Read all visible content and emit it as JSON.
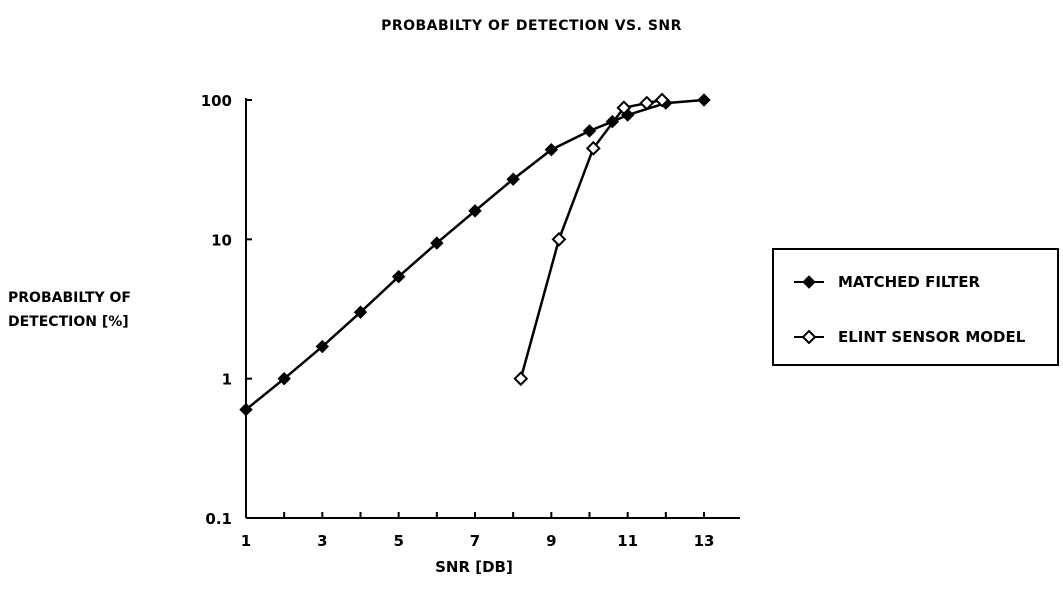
{
  "chart_data": {
    "type": "line",
    "title": "PROBABILTY OF DETECTION VS. SNR",
    "xlabel": "SNR [DB]",
    "ylabel_lines": [
      "PROBABILTY OF",
      "DETECTION [%]"
    ],
    "x_ticks": [
      "1",
      "3",
      "5",
      "7",
      "9",
      "11",
      "13"
    ],
    "y_ticks": [
      "0.1",
      "1",
      "10",
      "100"
    ],
    "xlim": [
      1,
      13
    ],
    "ylim": [
      0.1,
      100
    ],
    "y_scale": "log",
    "legend_position": "right",
    "series": [
      {
        "name": "MATCHED FILTER",
        "marker": "filled-diamond",
        "x": [
          1,
          2,
          3,
          4,
          5,
          6,
          7,
          8,
          9,
          10,
          10.6,
          11,
          12,
          13
        ],
        "y": [
          0.6,
          1.0,
          1.7,
          3.0,
          5.4,
          9.4,
          16,
          27,
          44,
          60,
          70,
          78,
          95,
          100
        ]
      },
      {
        "name": "ELINT SENSOR MODEL",
        "marker": "open-diamond",
        "x": [
          8.2,
          9.2,
          10.1,
          10.9,
          11.5,
          11.9
        ],
        "y": [
          1.0,
          10,
          45,
          88,
          95,
          100
        ]
      }
    ]
  }
}
